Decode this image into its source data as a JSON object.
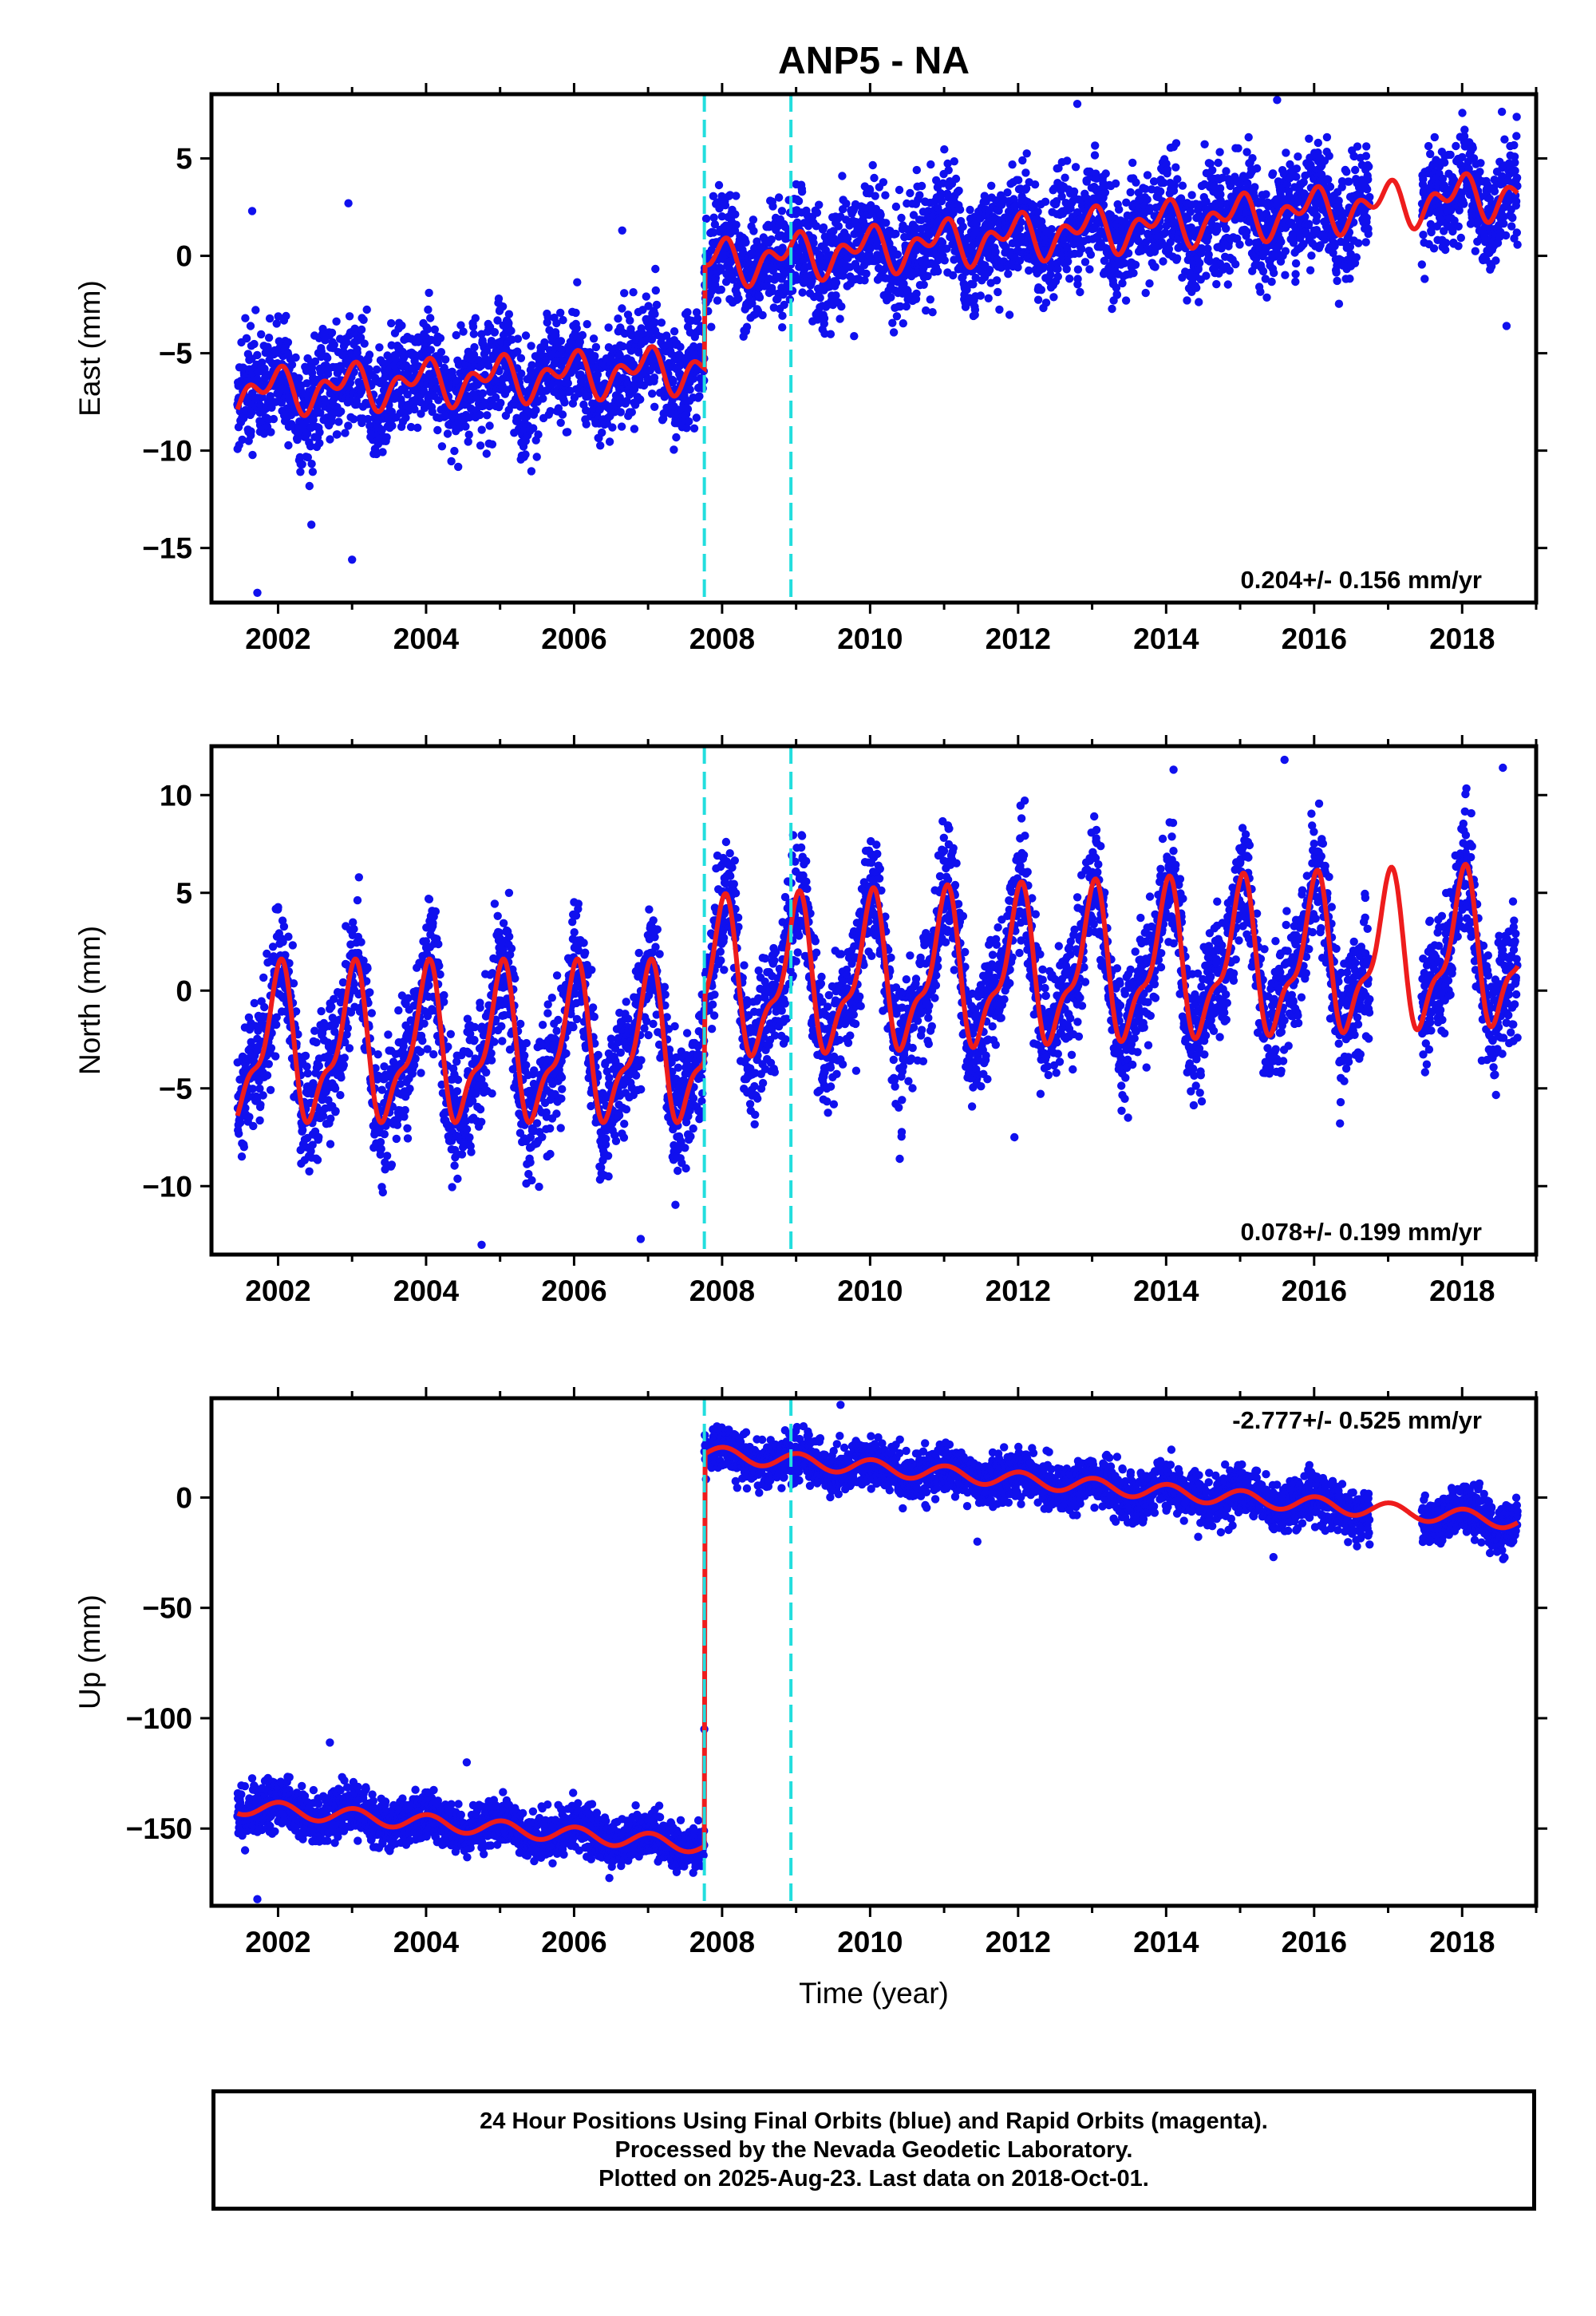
{
  "title": "ANP5 - NA",
  "colors": {
    "points": "#1010ee",
    "fit": "#ee1c1c",
    "event_lines": "#22dede",
    "axes": "#000000"
  },
  "footer": {
    "line1": "24 Hour Positions Using Final Orbits (blue) and Rapid Orbits (magenta).",
    "line2": "Processed by the Nevada Geodetic Laboratory.",
    "line3": "Plotted on 2025-Aug-23. Last data on 2018-Oct-01."
  },
  "chart_data": [
    {
      "type": "scatter",
      "ylabel": "East (mm)",
      "xlabel": "",
      "xlim": [
        2001.1,
        2019.0
      ],
      "ylim": [
        -17.8,
        8.3
      ],
      "x_ticks": [
        2002,
        2004,
        2006,
        2008,
        2010,
        2012,
        2014,
        2016,
        2018
      ],
      "y_ticks": [
        5,
        0,
        -5,
        -10,
        -15
      ],
      "y_tick_labels": [
        "5",
        "0",
        "−5",
        "−10",
        "−15"
      ],
      "rate_label": "0.204+/- 0.156 mm/yr",
      "rate_position": "bottom-right",
      "event_lines": [
        2007.76,
        2008.93
      ],
      "data_start": 2001.45,
      "data_end": 2018.75,
      "gap": [
        2016.75,
        2017.45
      ],
      "model": {
        "segments": [
          {
            "x0": 2001.45,
            "x1": 2007.76,
            "y0": -7.0,
            "rate": 0.2
          },
          {
            "x0": 2007.76,
            "x1": 2018.75,
            "y0": -0.4,
            "rate": 0.33
          }
        ],
        "seasonal": {
          "annual_amp": 0.8,
          "annual_phase": 2.0,
          "semiannual_amp": 0.7,
          "semiannual_phase": 0.5
        }
      },
      "scatter_sd": 1.4,
      "outliers": [
        [
          2001.72,
          -17.3
        ],
        [
          2002.45,
          -13.8
        ],
        [
          2003.0,
          -15.6
        ],
        [
          2001.65,
          2.3
        ],
        [
          2002.95,
          2.7
        ],
        [
          2006.65,
          1.3
        ],
        [
          2015.5,
          8.0
        ],
        [
          2012.8,
          7.8
        ],
        [
          2018.6,
          -3.6
        ]
      ]
    },
    {
      "type": "scatter",
      "ylabel": "North (mm)",
      "xlabel": "",
      "xlim": [
        2001.1,
        2019.0
      ],
      "ylim": [
        -13.5,
        12.5
      ],
      "x_ticks": [
        2002,
        2004,
        2006,
        2008,
        2010,
        2012,
        2014,
        2016,
        2018
      ],
      "y_ticks": [
        10,
        5,
        0,
        -5,
        -10
      ],
      "y_tick_labels": [
        "10",
        "5",
        "0",
        "−5",
        "−10"
      ],
      "rate_label": "0.078+/- 0.199 mm/yr",
      "rate_position": "bottom-right",
      "event_lines": [
        2007.76,
        2008.93
      ],
      "data_start": 2001.45,
      "data_end": 2018.75,
      "gap": [
        2016.75,
        2017.45
      ],
      "model": {
        "segments": [
          {
            "x0": 2001.45,
            "x1": 2007.76,
            "y0": -3.0,
            "rate": 0.0
          },
          {
            "x0": 2007.76,
            "x1": 2018.75,
            "y0": 0.3,
            "rate": 0.15
          }
        ],
        "seasonal": {
          "annual_amp": 3.5,
          "annual_phase": 1.6,
          "semiannual_amp": 1.4,
          "semiannual_phase": 0.6
        }
      },
      "scatter_sd": 1.6,
      "outliers": [
        [
          2004.75,
          -13.0
        ],
        [
          2006.9,
          -12.7
        ],
        [
          2015.6,
          11.8
        ],
        [
          2018.55,
          11.4
        ],
        [
          2014.1,
          11.3
        ],
        [
          2011.95,
          -7.5
        ],
        [
          2010.4,
          -8.6
        ]
      ]
    },
    {
      "type": "scatter",
      "ylabel": "Up (mm)",
      "xlabel": "Time (year)",
      "xlim": [
        2001.1,
        2019.0
      ],
      "ylim": [
        -185,
        45
      ],
      "x_ticks": [
        2002,
        2004,
        2006,
        2008,
        2010,
        2012,
        2014,
        2016,
        2018
      ],
      "y_ticks": [
        0,
        -50,
        -100,
        -150
      ],
      "y_tick_labels": [
        "0",
        "−50",
        "−100",
        "−150"
      ],
      "rate_label": "-2.777+/- 0.525 mm/yr",
      "rate_position": "top-right",
      "event_lines": [
        2007.76,
        2008.93
      ],
      "data_start": 2001.45,
      "data_end": 2018.75,
      "gap": [
        2016.75,
        2017.45
      ],
      "model": {
        "segments": [
          {
            "x0": 2001.45,
            "x1": 2007.76,
            "y0": -140,
            "rate": -2.8
          },
          {
            "x0": 2007.76,
            "x1": 2018.75,
            "y0": 20,
            "rate": -2.8
          }
        ],
        "seasonal": {
          "annual_amp": 3.5,
          "annual_phase": 1.4,
          "semiannual_amp": 0.0,
          "semiannual_phase": 0.0
        }
      },
      "scatter_sd": 5.5,
      "outliers": [
        [
          2001.72,
          -182
        ],
        [
          2009.6,
          42
        ],
        [
          2011.45,
          -20
        ],
        [
          2015.45,
          -27
        ],
        [
          2002.7,
          -111
        ],
        [
          2004.55,
          -120
        ],
        [
          2007.76,
          -105
        ]
      ]
    }
  ]
}
